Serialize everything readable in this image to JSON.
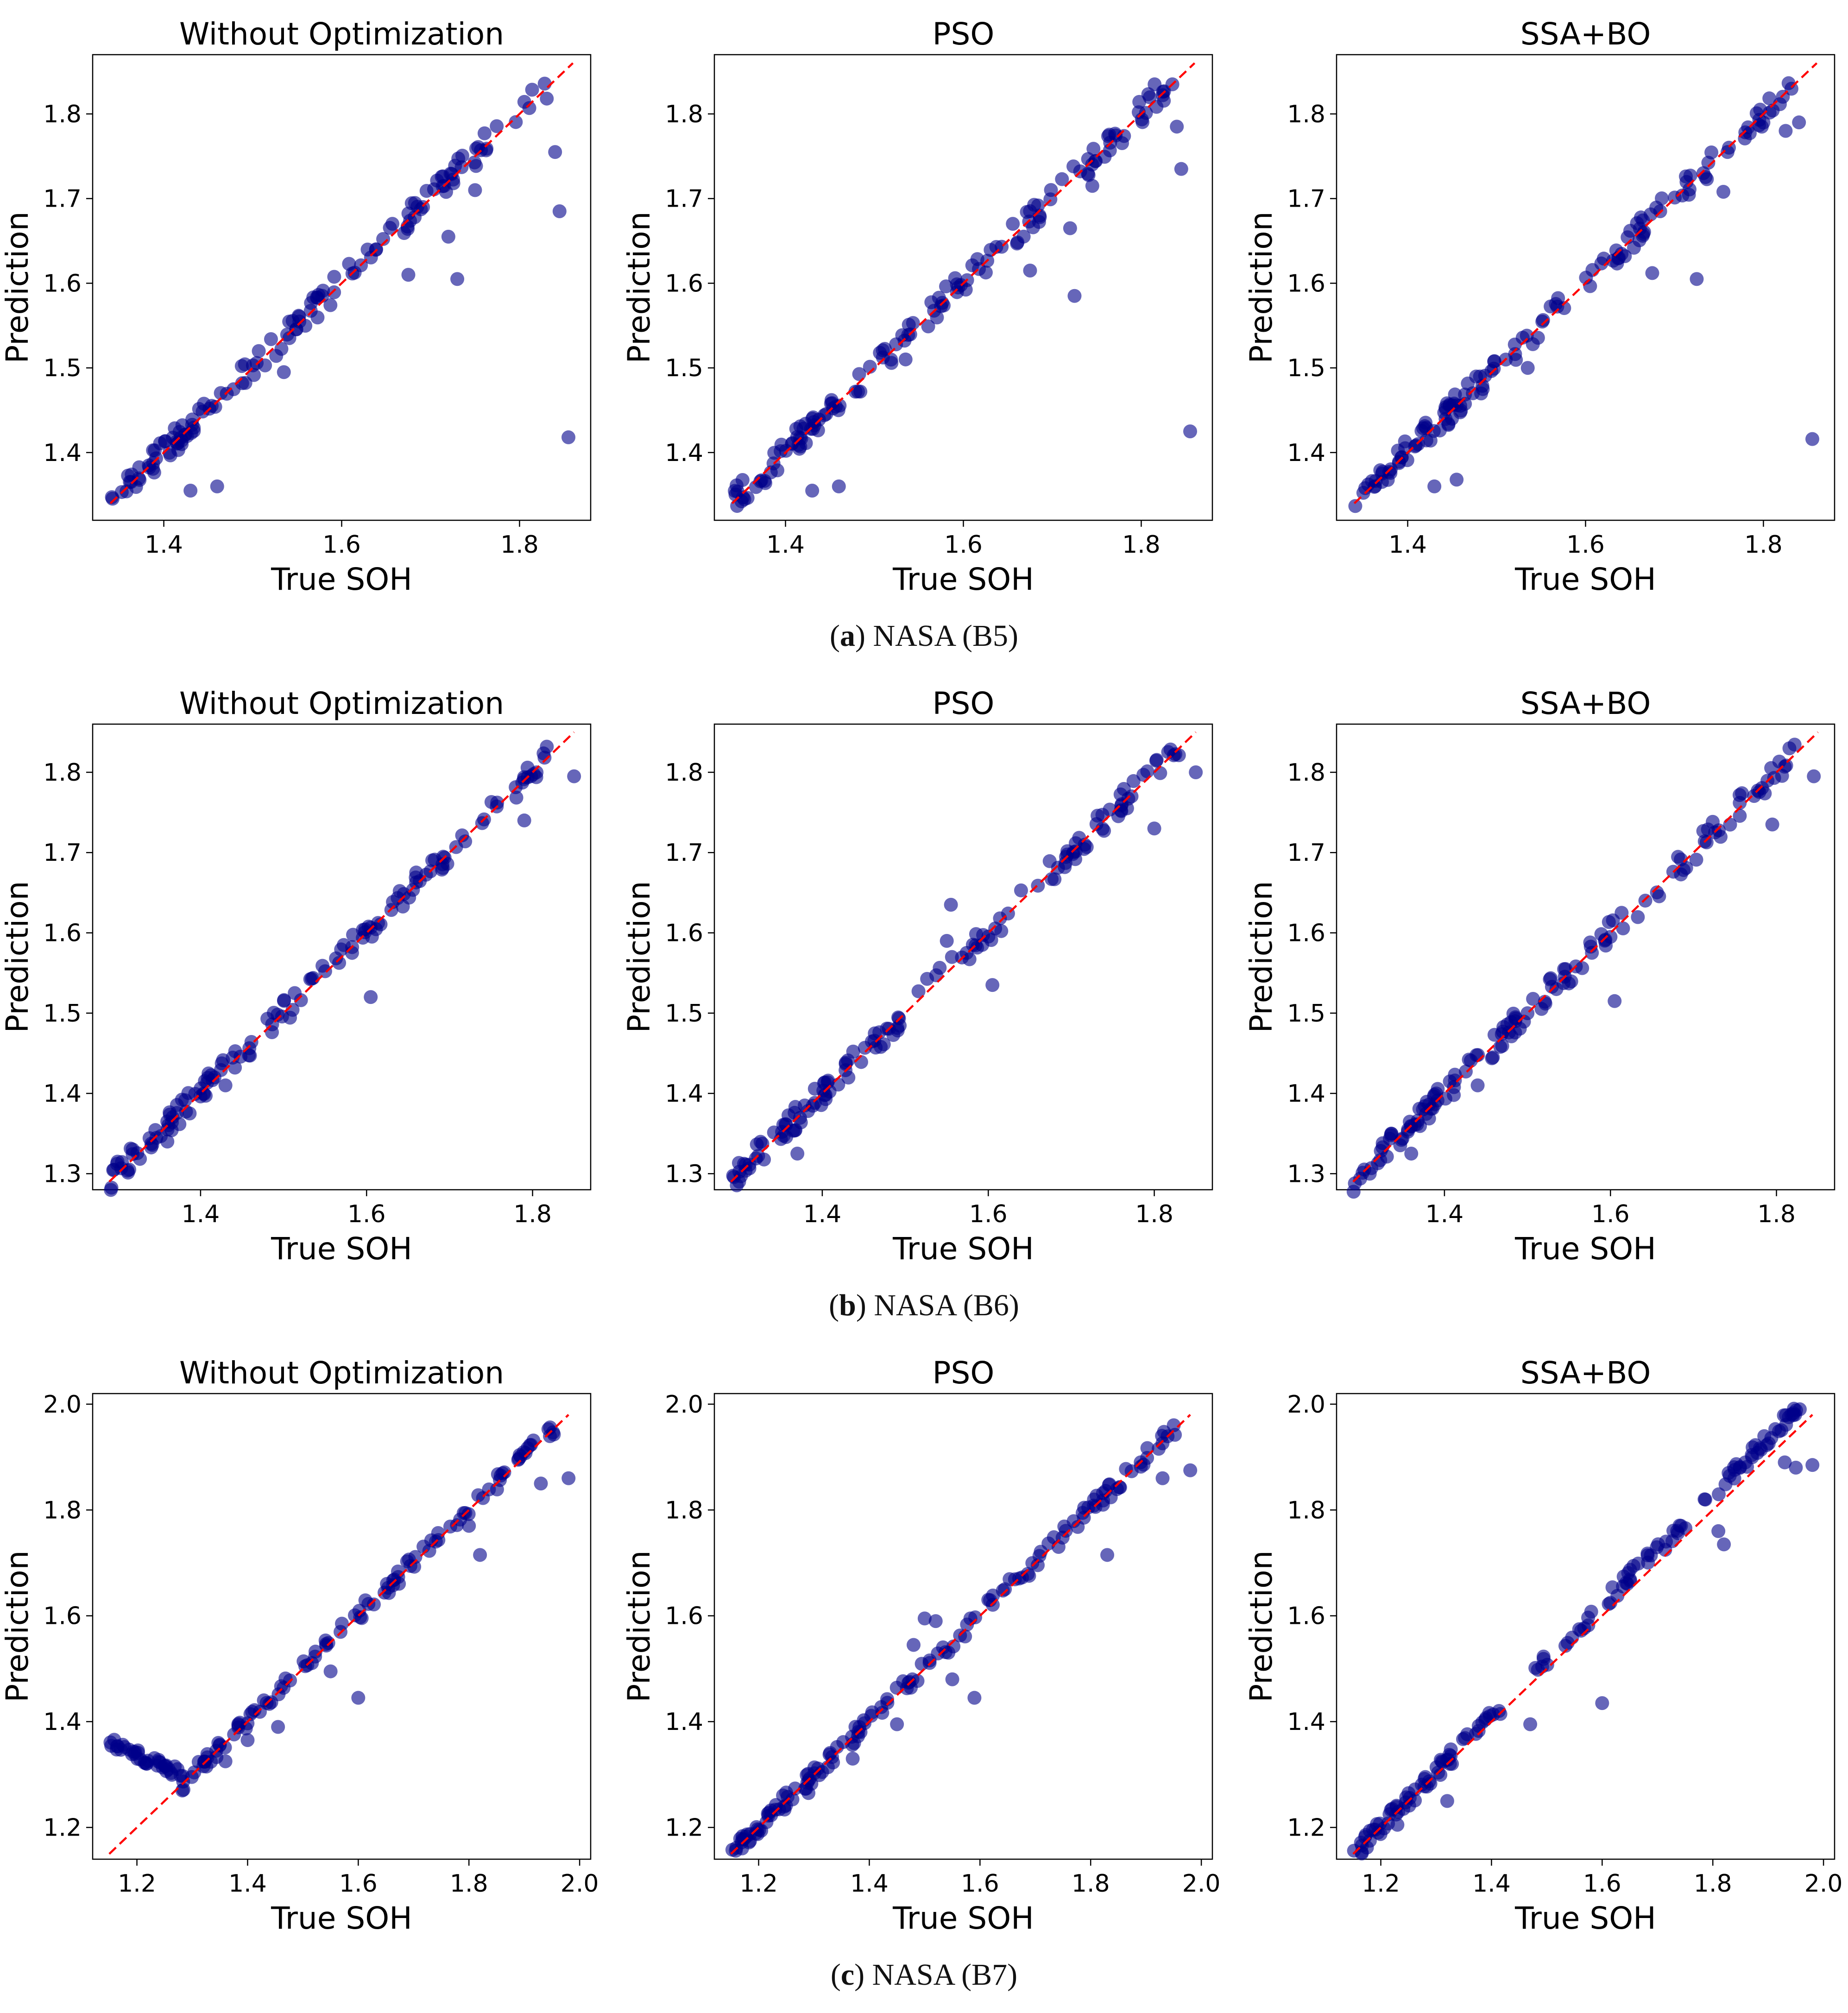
{
  "colors": {
    "point": "#00008b",
    "reference_line": "#ff0000",
    "axis": "#000000",
    "text": "#000000"
  },
  "x_label": "True SOH",
  "y_label": "Prediction",
  "captions": [
    {
      "letter": "a",
      "open": "(",
      "close": ")",
      "text": "NASA (B5)"
    },
    {
      "letter": "b",
      "open": "(",
      "close": ")",
      "text": "NASA (B6)"
    },
    {
      "letter": "c",
      "open": "(",
      "close": ")",
      "text": "NASA (B7)"
    }
  ],
  "chart_data": [
    {
      "type": "scatter",
      "row": 0,
      "col": 0,
      "title": "Without Optimization",
      "xlabel": "True SOH",
      "ylabel": "Prediction",
      "xlim": [
        1.32,
        1.88
      ],
      "ylim": [
        1.32,
        1.87
      ],
      "xticks": [
        "1.4",
        "1.6",
        "1.8"
      ],
      "yticks": [
        "1.4",
        "1.5",
        "1.6",
        "1.7",
        "1.8"
      ],
      "ref_line": [
        [
          1.34,
          1.34
        ],
        [
          1.86,
          1.86
        ]
      ],
      "outliers": [
        [
          1.43,
          1.355
        ],
        [
          1.46,
          1.36
        ],
        [
          1.535,
          1.495
        ],
        [
          1.675,
          1.61
        ],
        [
          1.72,
          1.655
        ],
        [
          1.73,
          1.605
        ],
        [
          1.75,
          1.71
        ],
        [
          1.84,
          1.755
        ],
        [
          1.845,
          1.685
        ],
        [
          1.855,
          1.418
        ]
      ]
    },
    {
      "type": "scatter",
      "row": 0,
      "col": 1,
      "title": "PSO",
      "xlabel": "True SOH",
      "ylabel": "Prediction",
      "xlim": [
        1.32,
        1.88
      ],
      "ylim": [
        1.32,
        1.87
      ],
      "xticks": [
        "1.4",
        "1.6",
        "1.8"
      ],
      "yticks": [
        "1.4",
        "1.5",
        "1.6",
        "1.7",
        "1.8"
      ],
      "ref_line": [
        [
          1.34,
          1.34
        ],
        [
          1.86,
          1.86
        ]
      ],
      "outliers": [
        [
          1.43,
          1.355
        ],
        [
          1.46,
          1.36
        ],
        [
          1.535,
          1.51
        ],
        [
          1.675,
          1.615
        ],
        [
          1.72,
          1.665
        ],
        [
          1.725,
          1.585
        ],
        [
          1.745,
          1.715
        ],
        [
          1.815,
          1.835
        ],
        [
          1.835,
          1.835
        ],
        [
          1.84,
          1.785
        ],
        [
          1.845,
          1.735
        ],
        [
          1.855,
          1.425
        ]
      ]
    },
    {
      "type": "scatter",
      "row": 0,
      "col": 2,
      "title": "SSA+BO",
      "xlabel": "True SOH",
      "ylabel": "Prediction",
      "xlim": [
        1.32,
        1.88
      ],
      "ylim": [
        1.32,
        1.87
      ],
      "xticks": [
        "1.4",
        "1.6",
        "1.8"
      ],
      "yticks": [
        "1.4",
        "1.5",
        "1.6",
        "1.7",
        "1.8"
      ],
      "ref_line": [
        [
          1.34,
          1.34
        ],
        [
          1.86,
          1.86
        ]
      ],
      "outliers": [
        [
          1.43,
          1.36
        ],
        [
          1.455,
          1.368
        ],
        [
          1.535,
          1.5
        ],
        [
          1.675,
          1.612
        ],
        [
          1.725,
          1.605
        ],
        [
          1.755,
          1.708
        ],
        [
          1.825,
          1.78
        ],
        [
          1.84,
          1.79
        ],
        [
          1.855,
          1.416
        ]
      ]
    },
    {
      "type": "scatter",
      "row": 1,
      "col": 0,
      "title": "Without Optimization",
      "xlabel": "True SOH",
      "ylabel": "Prediction",
      "xlim": [
        1.27,
        1.87
      ],
      "ylim": [
        1.28,
        1.86
      ],
      "xticks": [
        "1.4",
        "1.6",
        "1.8"
      ],
      "yticks": [
        "1.3",
        "1.4",
        "1.5",
        "1.6",
        "1.7",
        "1.8"
      ],
      "ref_line": [
        [
          1.29,
          1.29
        ],
        [
          1.85,
          1.85
        ]
      ],
      "outliers": [
        [
          1.3,
          1.315
        ],
        [
          1.36,
          1.34
        ],
        [
          1.43,
          1.41
        ],
        [
          1.605,
          1.52
        ],
        [
          1.79,
          1.74
        ],
        [
          1.85,
          1.795
        ]
      ]
    },
    {
      "type": "scatter",
      "row": 1,
      "col": 1,
      "title": "PSO",
      "xlabel": "True SOH",
      "ylabel": "Prediction",
      "xlim": [
        1.27,
        1.87
      ],
      "ylim": [
        1.28,
        1.86
      ],
      "xticks": [
        "1.4",
        "1.6",
        "1.8"
      ],
      "yticks": [
        "1.3",
        "1.4",
        "1.5",
        "1.6",
        "1.7",
        "1.8"
      ],
      "ref_line": [
        [
          1.29,
          1.29
        ],
        [
          1.85,
          1.85
        ]
      ],
      "outliers": [
        [
          1.37,
          1.325
        ],
        [
          1.555,
          1.635
        ],
        [
          1.55,
          1.59
        ],
        [
          1.605,
          1.535
        ],
        [
          1.8,
          1.73
        ],
        [
          1.85,
          1.8
        ]
      ]
    },
    {
      "type": "scatter",
      "row": 1,
      "col": 2,
      "title": "SSA+BO",
      "xlabel": "True SOH",
      "ylabel": "Prediction",
      "xlim": [
        1.27,
        1.87
      ],
      "ylim": [
        1.28,
        1.86
      ],
      "xticks": [
        "1.4",
        "1.6",
        "1.8"
      ],
      "yticks": [
        "1.3",
        "1.4",
        "1.5",
        "1.6",
        "1.7",
        "1.8"
      ],
      "ref_line": [
        [
          1.29,
          1.29
        ],
        [
          1.85,
          1.85
        ]
      ],
      "outliers": [
        [
          1.31,
          1.3
        ],
        [
          1.36,
          1.325
        ],
        [
          1.44,
          1.41
        ],
        [
          1.605,
          1.515
        ],
        [
          1.795,
          1.735
        ],
        [
          1.845,
          1.795
        ]
      ]
    },
    {
      "type": "scatter",
      "row": 2,
      "col": 0,
      "title": "Without Optimization",
      "xlabel": "True SOH",
      "ylabel": "Prediction",
      "xlim": [
        1.12,
        2.02
      ],
      "ylim": [
        1.14,
        2.02
      ],
      "xticks": [
        "1.2",
        "1.4",
        "1.6",
        "1.8",
        "2.0"
      ],
      "yticks": [
        "1.2",
        "1.4",
        "1.6",
        "1.8",
        "2.0"
      ],
      "ref_line": [
        [
          1.15,
          1.15
        ],
        [
          1.98,
          1.98
        ]
      ],
      "outliers": [
        [
          1.36,
          1.325
        ],
        [
          1.4,
          1.365
        ],
        [
          1.455,
          1.39
        ],
        [
          1.55,
          1.495
        ],
        [
          1.6,
          1.445
        ],
        [
          1.82,
          1.715
        ],
        [
          1.8,
          1.77
        ],
        [
          1.93,
          1.85
        ],
        [
          1.98,
          1.86
        ]
      ]
    },
    {
      "type": "scatter",
      "row": 2,
      "col": 1,
      "title": "PSO",
      "xlabel": "True SOH",
      "ylabel": "Prediction",
      "xlim": [
        1.12,
        2.02
      ],
      "ylim": [
        1.14,
        2.02
      ],
      "xticks": [
        "1.2",
        "1.4",
        "1.6",
        "1.8",
        "2.0"
      ],
      "yticks": [
        "1.2",
        "1.4",
        "1.6",
        "1.8",
        "2.0"
      ],
      "ref_line": [
        [
          1.15,
          1.15
        ],
        [
          1.98,
          1.98
        ]
      ],
      "outliers": [
        [
          1.29,
          1.265
        ],
        [
          1.37,
          1.33
        ],
        [
          1.45,
          1.395
        ],
        [
          1.5,
          1.595
        ],
        [
          1.52,
          1.59
        ],
        [
          1.48,
          1.545
        ],
        [
          1.55,
          1.48
        ],
        [
          1.59,
          1.445
        ],
        [
          1.83,
          1.715
        ],
        [
          1.93,
          1.86
        ],
        [
          1.98,
          1.875
        ]
      ]
    },
    {
      "type": "scatter",
      "row": 2,
      "col": 2,
      "title": "SSA+BO",
      "xlabel": "True SOH",
      "ylabel": "Prediction",
      "xlim": [
        1.12,
        2.02
      ],
      "ylim": [
        1.14,
        2.02
      ],
      "xticks": [
        "1.2",
        "1.4",
        "1.6",
        "1.8",
        "2.0"
      ],
      "yticks": [
        "1.2",
        "1.4",
        "1.6",
        "1.8",
        "2.0"
      ],
      "ref_line": [
        [
          1.15,
          1.15
        ],
        [
          1.98,
          1.98
        ]
      ],
      "outliers": [
        [
          1.23,
          1.205
        ],
        [
          1.32,
          1.25
        ],
        [
          1.47,
          1.395
        ],
        [
          1.6,
          1.435
        ],
        [
          1.81,
          1.76
        ],
        [
          1.82,
          1.735
        ],
        [
          1.93,
          1.89
        ],
        [
          1.95,
          1.88
        ],
        [
          1.98,
          1.885
        ]
      ]
    }
  ]
}
